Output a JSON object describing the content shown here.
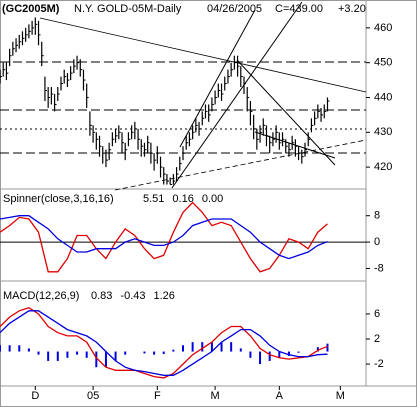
{
  "chart_data": [
    {
      "type": "ohlc",
      "symbol": "(GC2005M)",
      "title": "N.Y. GOLD-05M-Daily",
      "date": "04/26/2005",
      "last": "C=439.00",
      "change": "+3.20",
      "change_color": "#00a000",
      "color": "#000000",
      "x": [
        0,
        1,
        2,
        3,
        4,
        5,
        6,
        7,
        8,
        9,
        10,
        11,
        12,
        13,
        14,
        15,
        16,
        17,
        18,
        19,
        20,
        21,
        22,
        23,
        24,
        25,
        26,
        27,
        28,
        29,
        30,
        31,
        32,
        33,
        34,
        35,
        36,
        37,
        38,
        39,
        40,
        41,
        42,
        43,
        44,
        45,
        46,
        47,
        48,
        49,
        50,
        51,
        52,
        53,
        54,
        55,
        56,
        57,
        58,
        59,
        60,
        61,
        62,
        63,
        64,
        65,
        66,
        67,
        68,
        69,
        70,
        71,
        72,
        73,
        74,
        75,
        76,
        77,
        78,
        79,
        80,
        81,
        82,
        83,
        84,
        85,
        86,
        87,
        88,
        89,
        90,
        91,
        92,
        93,
        94,
        95,
        96,
        97,
        98,
        99,
        100,
        101,
        102
      ],
      "high": [
        448,
        450,
        450,
        454,
        456,
        457,
        458,
        459,
        460,
        461,
        462,
        463,
        462,
        456,
        446,
        443,
        443,
        441,
        443,
        446,
        448,
        447,
        449,
        451,
        452,
        451,
        448,
        444,
        436,
        432,
        430,
        429,
        426,
        425,
        427,
        430,
        431,
        432,
        430,
        427,
        430,
        432,
        433,
        431,
        428,
        427,
        429,
        427,
        424,
        426,
        423,
        420,
        418,
        417,
        418,
        420,
        423,
        426,
        429,
        430,
        432,
        434,
        433,
        436,
        438,
        438,
        440,
        442,
        444,
        444,
        446,
        448,
        450,
        452,
        452,
        449,
        446,
        443,
        439,
        435,
        431,
        432,
        434,
        432,
        429,
        430,
        432,
        430,
        430,
        428,
        427,
        429,
        428,
        426,
        425,
        427,
        430,
        434,
        436,
        438,
        437,
        438,
        440
      ],
      "low": [
        444,
        446,
        445,
        449,
        452,
        453,
        454,
        455,
        456,
        457,
        458,
        458,
        455,
        449,
        439,
        437,
        438,
        436,
        439,
        442,
        444,
        443,
        445,
        447,
        448,
        446,
        442,
        437,
        429,
        427,
        425,
        423,
        421,
        420,
        422,
        426,
        427,
        428,
        424,
        422,
        426,
        428,
        428,
        425,
        423,
        423,
        424,
        421,
        419,
        421,
        417,
        415,
        415,
        415,
        415,
        416,
        419,
        422,
        425,
        426,
        428,
        430,
        429,
        432,
        434,
        433,
        436,
        438,
        440,
        439,
        442,
        444,
        446,
        448,
        446,
        443,
        441,
        436,
        432,
        428,
        425,
        427,
        429,
        426,
        424,
        426,
        427,
        425,
        426,
        424,
        423,
        425,
        423,
        422,
        421,
        423,
        426,
        430,
        432,
        434,
        433,
        434,
        436
      ],
      "close": [
        446,
        448,
        447,
        452,
        454,
        455,
        456,
        457,
        458,
        459,
        460,
        461,
        458,
        452,
        442,
        440,
        441,
        438,
        441,
        444,
        446,
        445,
        447,
        449,
        450,
        448,
        445,
        440,
        432,
        430,
        428,
        426,
        424,
        422,
        425,
        428,
        429,
        430,
        427,
        425,
        428,
        430,
        431,
        428,
        426,
        425,
        427,
        424,
        422,
        424,
        420,
        418,
        416,
        415,
        416,
        418,
        421,
        424,
        427,
        428,
        430,
        432,
        431,
        434,
        436,
        435,
        438,
        440,
        442,
        441,
        444,
        446,
        448,
        450,
        449,
        446,
        444,
        440,
        436,
        431,
        428,
        430,
        432,
        429,
        427,
        428,
        430,
        427,
        428,
        426,
        425,
        427,
        426,
        424,
        423,
        425,
        428,
        432,
        434,
        436,
        435,
        436,
        439
      ],
      "xlim": [
        0,
        114
      ],
      "ylim": [
        414,
        468
      ],
      "yticks": [
        460,
        450,
        440,
        430,
        420
      ]
    },
    {
      "type": "line",
      "title": "Spinner(close,3,16,16)",
      "readouts": [
        "5.51",
        "0.16",
        "0.00"
      ],
      "readout_colors": [
        "#e00000",
        "#0000e0",
        "#000000"
      ],
      "reference_line": 0,
      "x": [
        0,
        3,
        6,
        9,
        12,
        15,
        18,
        21,
        24,
        27,
        30,
        33,
        36,
        39,
        42,
        45,
        48,
        51,
        54,
        57,
        60,
        63,
        66,
        69,
        72,
        75,
        78,
        81,
        84,
        87,
        90,
        93,
        96,
        99,
        102
      ],
      "series": [
        {
          "color": "#e00000",
          "values": [
            3,
            5,
            7.5,
            7,
            3,
            -9,
            -9,
            -5,
            2,
            2,
            -2,
            -5,
            0,
            4,
            2,
            -2,
            -5,
            -4,
            3,
            9,
            12,
            9,
            5,
            6,
            5,
            0,
            -5,
            -9,
            -8,
            -4,
            1,
            0,
            -2,
            3,
            5.51
          ]
        },
        {
          "color": "#0000e0",
          "values": [
            7,
            7.5,
            8,
            8,
            6,
            4,
            1,
            -1,
            -3,
            -3,
            -2,
            -2,
            -2,
            0,
            1,
            0,
            -1,
            -1,
            0,
            2,
            5,
            6,
            7,
            7,
            7,
            5,
            3,
            0,
            -2,
            -4,
            -5,
            -4,
            -3,
            -1,
            0.16
          ]
        }
      ],
      "xlim": [
        0,
        114
      ],
      "ylim": [
        -11.5,
        15.8
      ],
      "yticks": [
        8,
        0,
        -8
      ]
    },
    {
      "type": "macd",
      "title": "MACD(12,26,9)",
      "readouts": [
        "0.83",
        "-0.43",
        "1.26"
      ],
      "readout_colors": [
        "#e00000",
        "#0000e0",
        "#0000e0"
      ],
      "x": [
        0,
        3,
        6,
        9,
        12,
        15,
        18,
        21,
        24,
        27,
        30,
        33,
        36,
        39,
        42,
        45,
        48,
        51,
        54,
        57,
        60,
        63,
        66,
        69,
        72,
        75,
        78,
        81,
        84,
        87,
        90,
        93,
        96,
        99,
        102
      ],
      "series": [
        {
          "color": "#e00000",
          "values": [
            4,
            5.5,
            6.5,
            7,
            6,
            4,
            3,
            2.5,
            2.5,
            1.5,
            -1,
            -2.5,
            -3,
            -3,
            -3,
            -3.5,
            -4,
            -4.2,
            -3.5,
            -2,
            -0.5,
            0.5,
            1.5,
            3,
            4,
            4,
            2.5,
            0.5,
            -0.5,
            -1,
            -1.2,
            -1,
            -0.8,
            0.2,
            0.83
          ]
        },
        {
          "color": "#0000e0",
          "values": [
            3,
            4.5,
            5.5,
            6.5,
            6.5,
            5.5,
            4.5,
            3.5,
            3,
            2.5,
            1.5,
            0,
            -1.5,
            -2.5,
            -3,
            -3.2,
            -3.5,
            -3.8,
            -3.8,
            -3,
            -2,
            -1,
            0,
            1.5,
            2.5,
            3.5,
            3.5,
            2.5,
            1,
            0,
            -0.5,
            -0.8,
            -0.8,
            -0.5,
            -0.43
          ]
        }
      ],
      "histogram": {
        "color": "#0000e0",
        "values": [
          1,
          1,
          1,
          0.5,
          -0.5,
          -1.5,
          -1.5,
          -1,
          -0.5,
          -1,
          -2.5,
          -2.5,
          -1.5,
          -0.5,
          0,
          -0.3,
          -0.5,
          -0.4,
          0.3,
          1,
          1.5,
          1.5,
          1.5,
          1.5,
          1.5,
          0.5,
          -1,
          -2,
          -1.5,
          -1,
          -0.7,
          -0.2,
          0,
          0.7,
          1.26
        ]
      },
      "xlim": [
        0,
        114
      ],
      "ylim": [
        -5.5,
        11.1
      ],
      "yticks": [
        6,
        2,
        -2
      ],
      "xticks": [
        {
          "value": 11,
          "label": "D"
        },
        {
          "value": 29,
          "label": "05"
        },
        {
          "value": 49,
          "label": "F"
        },
        {
          "value": 67,
          "label": "M"
        },
        {
          "value": 87,
          "label": "A"
        },
        {
          "value": 106,
          "label": "M"
        }
      ]
    }
  ]
}
